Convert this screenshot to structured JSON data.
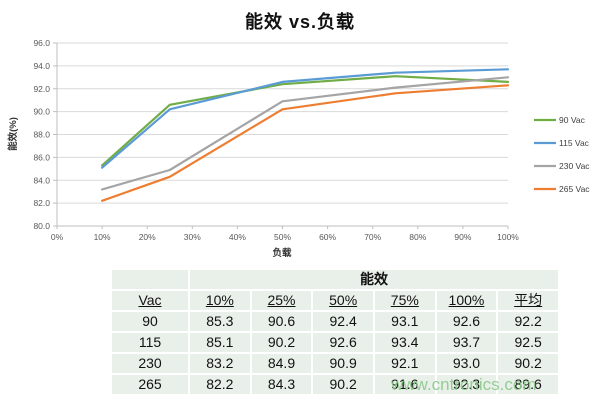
{
  "page": {
    "watermark": "www.cntronics.com"
  },
  "chart_data": {
    "type": "line",
    "title": "能效 vs.负载",
    "xlabel": "负载",
    "ylabel": "能效(%)",
    "x": [
      10,
      25,
      50,
      75,
      100
    ],
    "x_tick_values": [
      0,
      10,
      20,
      30,
      40,
      50,
      60,
      70,
      80,
      90,
      100
    ],
    "x_tick_labels": [
      "0%",
      "10%",
      "20%",
      "30%",
      "40%",
      "50%",
      "60%",
      "70%",
      "80%",
      "90%",
      "100%"
    ],
    "ylim": [
      80,
      96
    ],
    "y_ticks": [
      80,
      82,
      84,
      86,
      88,
      90,
      92,
      94,
      96
    ],
    "y_tick_labels": [
      "80.0",
      "82.0",
      "84.0",
      "86.0",
      "88.0",
      "90.0",
      "92.0",
      "94.0",
      "96.0"
    ],
    "grid": true,
    "legend_position": "right",
    "series": [
      {
        "name": "90 Vac",
        "color": "#70AD47",
        "values": [
          85.3,
          90.6,
          92.4,
          93.1,
          92.6
        ]
      },
      {
        "name": "115 Vac",
        "color": "#5B9BD5",
        "values": [
          85.1,
          90.2,
          92.6,
          93.4,
          93.7
        ]
      },
      {
        "name": "230 Vac",
        "color": "#A5A5A5",
        "values": [
          83.2,
          84.9,
          90.9,
          92.1,
          93.0
        ]
      },
      {
        "name": "265 Vac",
        "color": "#ED7D31",
        "values": [
          82.2,
          84.3,
          90.2,
          91.6,
          92.3
        ]
      }
    ]
  },
  "table": {
    "title": "能效",
    "columns": [
      "Vac",
      "10%",
      "25%",
      "50%",
      "75%",
      "100%",
      "平均"
    ],
    "rows": [
      [
        "90",
        "85.3",
        "90.6",
        "92.4",
        "93.1",
        "92.6",
        "92.2"
      ],
      [
        "115",
        "85.1",
        "90.2",
        "92.6",
        "93.4",
        "93.7",
        "92.5"
      ],
      [
        "230",
        "83.2",
        "84.9",
        "90.9",
        "92.1",
        "93.0",
        "90.2"
      ],
      [
        "265",
        "82.2",
        "84.3",
        "90.2",
        "91.6",
        "92.3",
        "89.6"
      ]
    ]
  },
  "style": {
    "grid_color": "#d9d9d9",
    "axis_color": "#bfbfbf",
    "tick_label_color": "#595959",
    "legend_label_color": "#404040",
    "table_cell_bg": "#e9efe9",
    "watermark_color": "#8cc98c"
  }
}
